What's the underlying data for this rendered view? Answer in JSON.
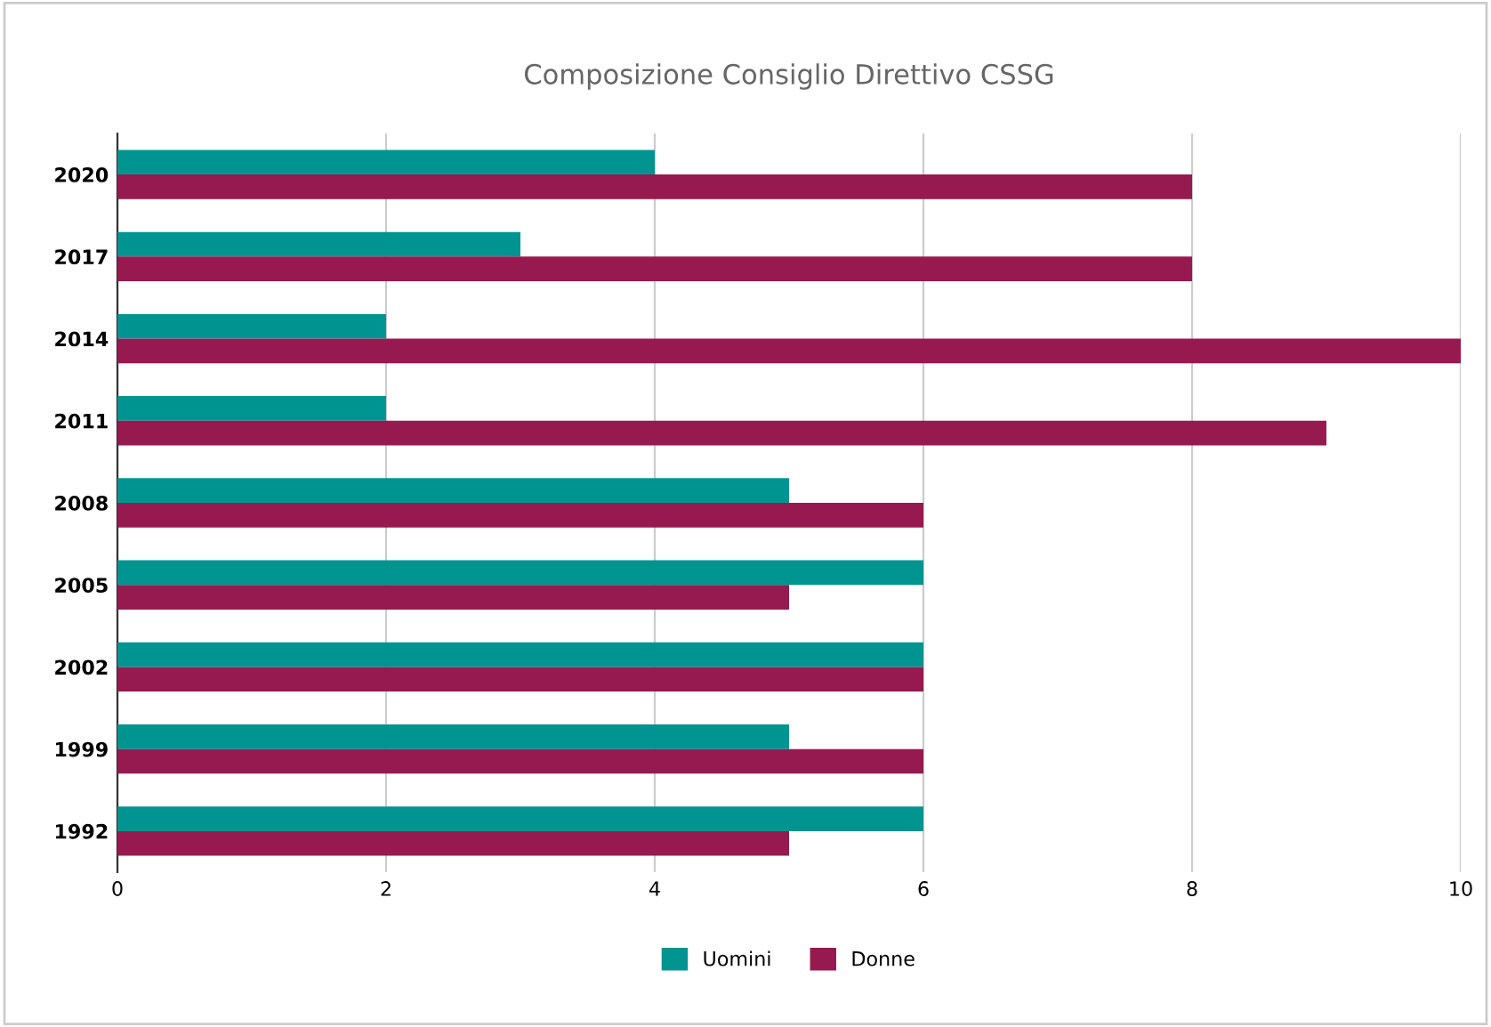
{
  "chart_data": {
    "type": "bar",
    "orientation": "horizontal",
    "title": "Composizione Consiglio Direttivo CSSG",
    "categories": [
      "2020",
      "2017",
      "2014",
      "2011",
      "2008",
      "2005",
      "2002",
      "1999",
      "1992"
    ],
    "series": [
      {
        "name": "Uomini",
        "color": "#009490",
        "values": [
          4,
          3,
          2,
          2,
          5,
          6,
          6,
          5,
          6
        ]
      },
      {
        "name": "Donne",
        "color": "#961a4f",
        "values": [
          8,
          8,
          10,
          9,
          6,
          5,
          6,
          6,
          5
        ]
      }
    ],
    "xlim": [
      0,
      10
    ],
    "xticks": [
      0,
      2,
      4,
      6,
      8,
      10
    ],
    "grid": "x",
    "legend": "bottom"
  }
}
